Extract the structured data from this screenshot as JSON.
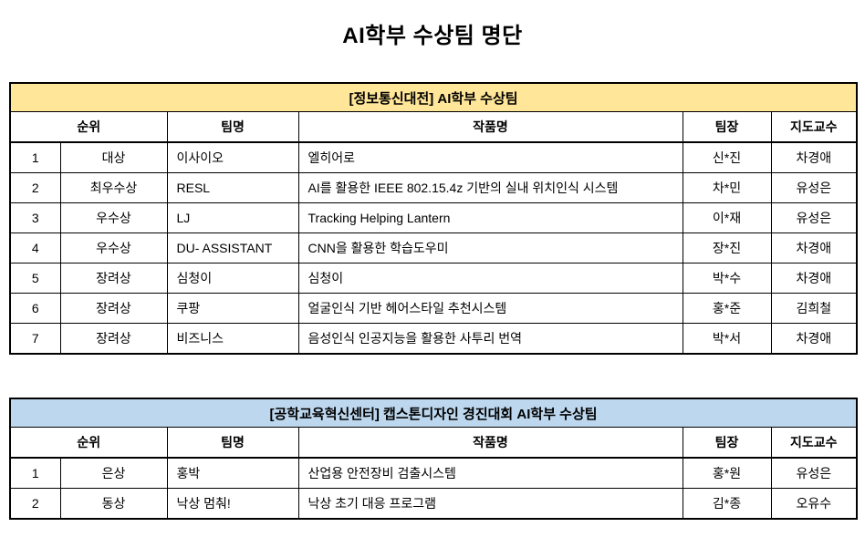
{
  "page": {
    "title": "AI학부 수상팀 명단"
  },
  "tables": [
    {
      "banner": "[정보통신대전] AI학부 수상팀",
      "banner_color": "#FFE699",
      "headers": [
        "순위",
        "팀명",
        "작품명",
        "팀장",
        "지도교수"
      ],
      "rows": [
        [
          "1",
          "대상",
          "이사이오",
          "엘히어로",
          "신*진",
          "차경애"
        ],
        [
          "2",
          "최우수상",
          "RESL",
          "AI를 활용한 IEEE 802.15.4z 기반의 실내 위치인식 시스템",
          "차*민",
          "유성은"
        ],
        [
          "3",
          "우수상",
          "LJ",
          "Tracking Helping Lantern",
          "이*재",
          "유성은"
        ],
        [
          "4",
          "우수상",
          "DU- ASSISTANT",
          "CNN을 활용한 학습도우미",
          "장*진",
          "차경애"
        ],
        [
          "5",
          "장려상",
          "심청이",
          "심청이",
          "박*수",
          "차경애"
        ],
        [
          "6",
          "장려상",
          "쿠팡",
          "얼굴인식 기반 헤어스타일 추천시스템",
          "홍*준",
          "김희철"
        ],
        [
          "7",
          "장려상",
          "비즈니스",
          "음성인식 인공지능을 활용한 사투리 번역",
          "박*서",
          "차경애"
        ]
      ]
    },
    {
      "banner": "[공학교육혁신센터] 캡스톤디자인 경진대회 AI학부 수상팀",
      "banner_color": "#BDD7EE",
      "headers": [
        "순위",
        "팀명",
        "작품명",
        "팀장",
        "지도교수"
      ],
      "rows": [
        [
          "1",
          "은상",
          "홍박",
          "산업용 안전장비 검출시스템",
          "홍*원",
          "유성은"
        ],
        [
          "2",
          "동상",
          "낙상 멈춰!",
          "낙상 초기 대응 프로그램",
          "김*종",
          "오유수"
        ]
      ]
    }
  ]
}
